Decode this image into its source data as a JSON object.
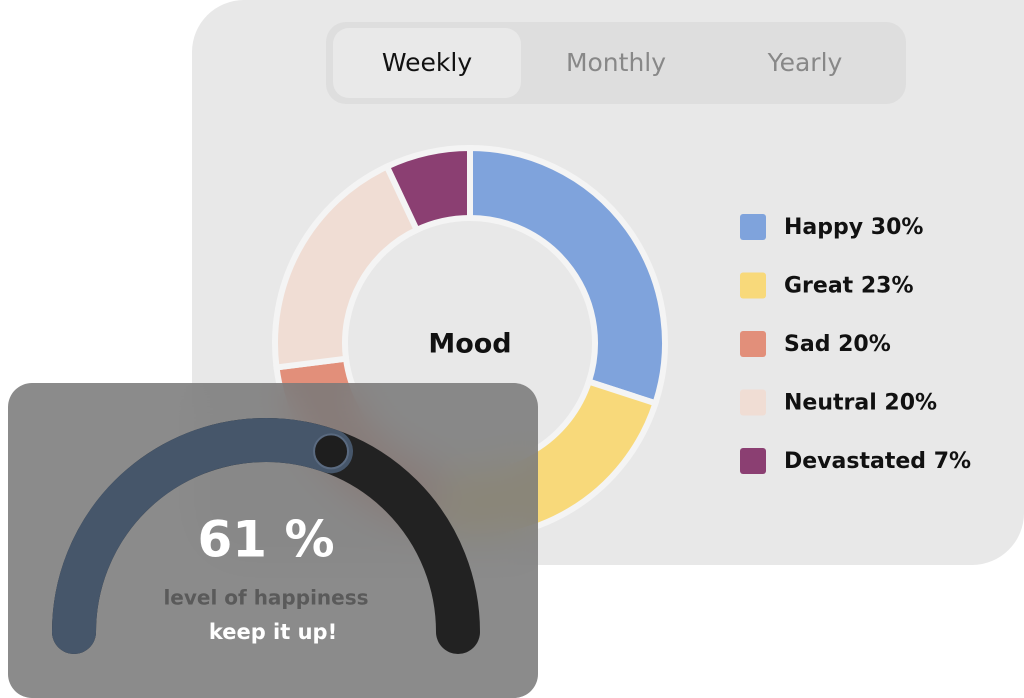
{
  "tabs": {
    "items": [
      "Weekly",
      "Monthly",
      "Yearly"
    ],
    "active": 0
  },
  "chart_data": [
    {
      "type": "donut",
      "title": "Mood",
      "categories": [
        "Happy",
        "Great",
        "Sad",
        "Neutral",
        "Devastated"
      ],
      "values": [
        30,
        23,
        20,
        20,
        7
      ],
      "value_labels": [
        "30%",
        "23%",
        "20%",
        "20%",
        "7%"
      ],
      "colors": [
        "#7fa3dc",
        "#f8d97a",
        "#e28f7a",
        "#f0ddd4",
        "#8b3f72"
      ]
    },
    {
      "type": "gauge",
      "value": 61,
      "value_label": "61 %",
      "ylim": [
        0,
        100
      ],
      "subtitle": "level of happiness",
      "caption": "keep it up!",
      "color": "#46566a",
      "track_color": "#222222"
    }
  ]
}
